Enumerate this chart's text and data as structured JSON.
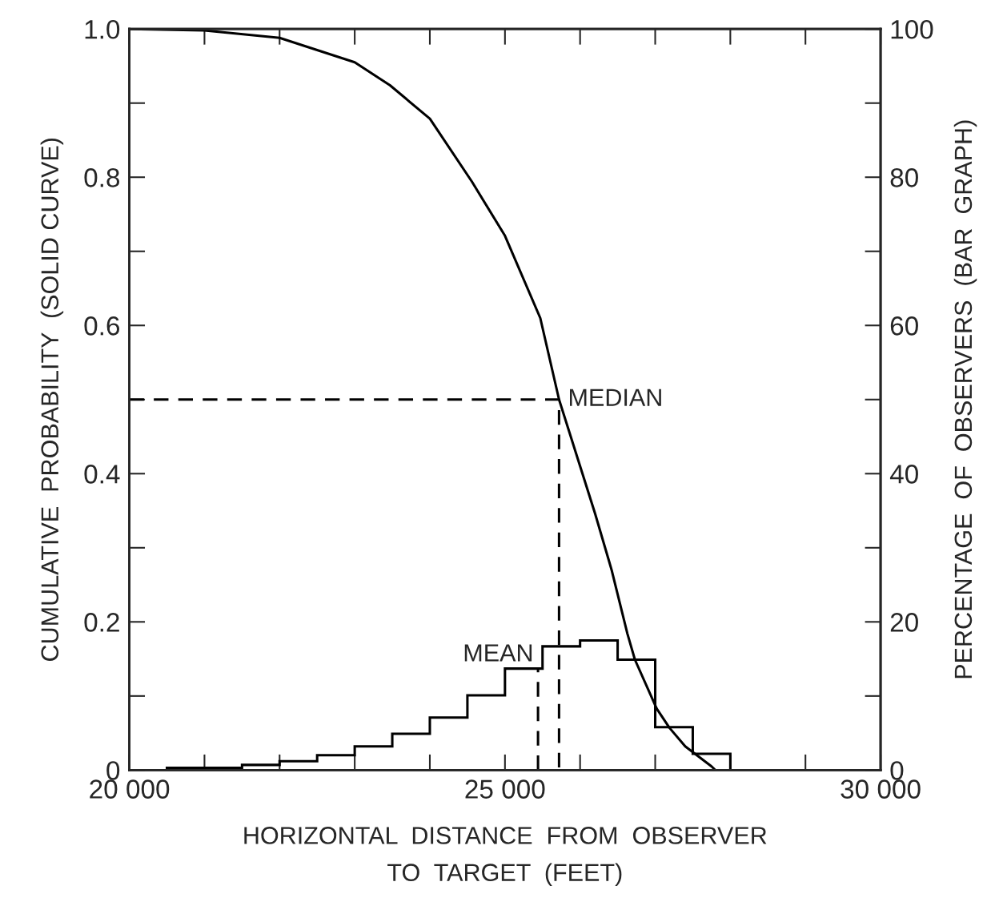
{
  "chart_data": {
    "type": "line",
    "xlabel": "HORIZONTAL  DISTANCE  FROM  OBSERVER\nTO  TARGET  (FEET)",
    "ylabel": "CUMULATIVE  PROBABILITY  (SOLID CURVE)",
    "y2label": "PERCENTAGE  OF  OBSERVERS  (BAR  GRAPH)",
    "series": [
      {
        "type": "line",
        "color": "#000000",
        "line_style": "solid",
        "x": [
          20000,
          21000,
          22000,
          23000,
          23470,
          24000,
          24560,
          25000,
          25470,
          25720,
          26200,
          26420,
          26630,
          26730,
          27020,
          27190,
          27400,
          27750,
          27800
        ],
        "values": [
          1.0,
          0.998,
          0.988,
          0.955,
          0.924,
          0.879,
          0.794,
          0.721,
          0.61,
          0.5,
          0.346,
          0.27,
          0.184,
          0.149,
          0.083,
          0.057,
          0.032,
          0.005,
          0.0
        ]
      },
      {
        "type": "histogram",
        "axis": "y2",
        "color": "#000000",
        "bins": [
          20500,
          21000,
          21500,
          22000,
          22500,
          23000,
          23500,
          24000,
          24500,
          25000,
          25500,
          26000,
          26500,
          27000,
          27500,
          28000
        ],
        "values": [
          0.3,
          0.3,
          0.7,
          1.2,
          2.0,
          3.2,
          4.9,
          7.1,
          10.1,
          13.7,
          16.7,
          17.5,
          14.9,
          5.8,
          2.2
        ]
      },
      {
        "type": "line",
        "color": "#000000",
        "line_style": "dashed",
        "x": [
          20000,
          25720,
          25720
        ],
        "values": [
          0.5,
          0.5,
          0.0
        ]
      },
      {
        "type": "line",
        "color": "#000000",
        "line_style": "dashed",
        "x": [
          25440,
          25440
        ],
        "values": [
          0.0,
          0.137
        ]
      }
    ],
    "annotations": [
      {
        "text": "MEDIAN",
        "x": 25720,
        "y": 0.5
      },
      {
        "text": "MEAN",
        "x": 25440,
        "y": 0.137
      }
    ],
    "xlim": [
      20000,
      30000
    ],
    "xticks": [
      {
        "value": 20000,
        "label": "20 000"
      },
      {
        "value": 25000,
        "label": "25 000"
      },
      {
        "value": 30000,
        "label": "30 000"
      }
    ],
    "ylim": [
      0,
      1.0
    ],
    "yticks": [
      {
        "value": 0,
        "label": "0"
      },
      {
        "value": 0.2,
        "label": "0.2"
      },
      {
        "value": 0.4,
        "label": "0.4"
      },
      {
        "value": 0.6,
        "label": "0.6"
      },
      {
        "value": 0.8,
        "label": "0.8"
      },
      {
        "value": 1.0,
        "label": "1.0"
      }
    ],
    "y2lim": [
      0,
      100
    ],
    "y2ticks": [
      {
        "value": 0,
        "label": "0"
      },
      {
        "value": 20,
        "label": "20"
      },
      {
        "value": 40,
        "label": "40"
      },
      {
        "value": 60,
        "label": "60"
      },
      {
        "value": 80,
        "label": "80"
      },
      {
        "value": 100,
        "label": "100"
      }
    ],
    "grid": false,
    "legend": false
  }
}
